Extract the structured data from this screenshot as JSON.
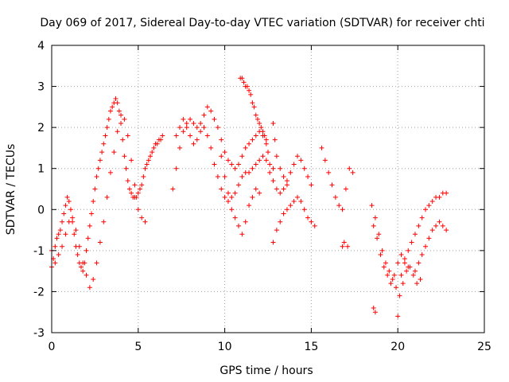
{
  "chart_data": {
    "type": "scatter",
    "title": "Day 069 of 2017, Sidereal Day-to-day VTEC variation (SDTVAR) for receiver chti",
    "xlabel": "GPS time / hours",
    "ylabel": "SDTVAR / TECUs",
    "xlim": [
      0,
      25
    ],
    "ylim": [
      -3,
      4
    ],
    "xticks": [
      "0",
      "5",
      "10",
      "15",
      "20",
      "25"
    ],
    "yticks": [
      "-3",
      "-2",
      "-1",
      "0",
      "1",
      "2",
      "3",
      "4"
    ],
    "grid": true,
    "legend": "none",
    "marker": "plus",
    "color": "#ff0000",
    "series": [
      {
        "x": [
          0.0,
          0.1,
          0.2,
          0.3,
          0.4,
          0.5,
          0.6,
          0.7,
          0.8,
          0.9,
          1.0,
          1.1,
          1.2,
          1.3,
          1.4,
          1.5,
          1.6,
          1.7,
          1.8,
          1.9,
          2.0,
          2.1,
          2.2,
          2.3,
          2.4,
          2.5,
          2.6,
          2.7,
          2.8,
          2.9,
          3.0,
          3.1,
          3.2,
          3.3,
          3.4,
          3.5,
          3.6,
          3.7,
          3.8,
          3.9,
          4.0,
          4.1,
          4.2,
          4.3,
          4.4,
          4.5,
          4.6,
          4.7,
          4.8,
          4.9,
          5.0,
          5.1,
          5.2,
          5.3,
          5.4,
          5.5,
          5.6,
          5.7,
          5.8,
          5.9,
          6.0,
          6.1,
          6.2,
          6.3,
          6.4
        ],
        "y": [
          -1.0,
          -1.2,
          -0.9,
          -0.7,
          -0.6,
          -0.5,
          -0.3,
          -0.1,
          0.1,
          0.3,
          0.2,
          0.0,
          -0.3,
          -0.6,
          -0.9,
          -1.1,
          -1.3,
          -1.4,
          -1.5,
          -1.3,
          -1.0,
          -0.7,
          -0.4,
          -0.1,
          0.2,
          0.5,
          0.8,
          1.0,
          1.2,
          1.4,
          1.6,
          1.8,
          2.0,
          2.2,
          2.4,
          2.5,
          2.6,
          2.7,
          2.6,
          2.4,
          2.1,
          1.7,
          1.3,
          1.0,
          0.7,
          0.5,
          0.4,
          0.3,
          0.3,
          0.3,
          0.4,
          0.5,
          0.6,
          0.8,
          1.0,
          1.1,
          1.2,
          1.3,
          1.4,
          1.5,
          1.6,
          1.6,
          1.7,
          1.7,
          1.8
        ]
      },
      {
        "x": [
          0.0,
          0.2,
          0.4,
          0.6,
          0.8,
          1.0,
          1.2,
          1.4,
          1.6,
          1.8,
          2.0,
          2.2,
          2.4,
          2.6,
          2.8,
          3.0,
          3.2,
          3.4,
          3.6,
          3.8,
          4.0,
          4.2,
          4.4,
          4.6,
          4.8,
          5.0,
          5.2,
          5.4
        ],
        "y": [
          -1.4,
          -1.3,
          -1.1,
          -0.9,
          -0.6,
          -0.3,
          -0.2,
          -0.5,
          -0.9,
          -1.3,
          -1.6,
          -1.9,
          -1.7,
          -1.3,
          -0.8,
          -0.3,
          0.3,
          0.9,
          1.4,
          1.9,
          2.3,
          2.2,
          1.8,
          1.2,
          0.6,
          0.0,
          -0.2,
          -0.3
        ]
      },
      {
        "x": [
          7.0,
          7.2,
          7.4,
          7.6,
          7.8,
          8.0,
          8.2,
          8.4,
          8.6,
          8.8,
          9.0,
          9.2,
          9.4,
          9.6,
          9.8,
          10.0,
          10.2,
          10.4,
          10.6,
          10.8,
          11.0,
          11.2,
          11.4,
          11.6,
          11.8,
          12.0,
          12.2,
          12.4
        ],
        "y": [
          0.5,
          1.0,
          1.5,
          1.9,
          2.1,
          2.2,
          2.1,
          2.0,
          2.1,
          2.3,
          2.5,
          2.4,
          2.2,
          2.0,
          1.7,
          1.4,
          1.2,
          1.1,
          1.0,
          1.1,
          1.3,
          1.5,
          1.6,
          1.7,
          1.8,
          1.9,
          1.8,
          1.7
        ]
      },
      {
        "x": [
          7.2,
          7.4,
          7.6,
          7.8,
          8.0,
          8.2,
          8.4,
          8.6,
          8.8,
          9.0,
          9.2,
          9.4,
          9.6,
          9.8,
          10.0,
          10.2,
          10.4,
          10.6,
          10.8,
          11.0,
          11.2,
          11.4,
          11.6,
          11.8,
          12.0,
          12.2,
          12.4,
          12.6,
          12.8
        ],
        "y": [
          1.8,
          2.0,
          2.2,
          2.0,
          1.8,
          1.6,
          1.7,
          1.9,
          2.0,
          1.8,
          1.5,
          1.1,
          0.8,
          0.5,
          0.3,
          0.2,
          0.3,
          0.4,
          0.6,
          0.8,
          0.9,
          0.9,
          1.0,
          1.1,
          1.2,
          1.3,
          1.2,
          1.1,
          1.0
        ]
      },
      {
        "x": [
          9.8,
          10.0,
          10.2,
          10.4,
          10.6,
          10.8,
          11.0,
          11.2,
          11.4,
          11.6,
          11.8,
          12.0
        ],
        "y": [
          1.3,
          0.8,
          0.4,
          0.0,
          -0.2,
          -0.4,
          -0.6,
          -0.3,
          0.1,
          0.3,
          0.5,
          0.4
        ]
      },
      {
        "x": [
          10.9,
          11.0,
          11.1,
          11.2,
          11.3,
          11.4,
          11.5,
          11.6,
          11.7,
          11.8,
          11.9,
          12.0,
          12.1,
          12.2,
          12.3,
          12.4,
          12.5
        ],
        "y": [
          3.2,
          3.2,
          3.1,
          3.0,
          3.0,
          2.9,
          2.8,
          2.6,
          2.5,
          2.3,
          2.2,
          2.1,
          2.0,
          1.9,
          1.8,
          1.6,
          1.4
        ]
      },
      {
        "x": [
          12.6,
          12.8,
          13.0,
          13.2,
          13.4,
          13.6,
          13.8,
          14.0,
          14.2,
          14.4,
          14.6,
          14.8,
          15.0
        ],
        "y": [
          0.9,
          0.7,
          0.5,
          0.4,
          0.5,
          0.7,
          0.9,
          1.1,
          1.3,
          1.2,
          1.0,
          0.8,
          0.6
        ]
      },
      {
        "x": [
          12.8,
          13.0,
          13.2,
          13.4,
          13.6,
          13.8,
          14.0,
          14.2,
          14.4,
          14.6,
          14.8,
          15.0,
          15.2
        ],
        "y": [
          -0.8,
          -0.5,
          -0.3,
          -0.1,
          0.0,
          0.1,
          0.2,
          0.3,
          0.2,
          0.0,
          -0.2,
          -0.3,
          -0.4
        ]
      },
      {
        "x": [
          12.8,
          12.9,
          13.0,
          13.2,
          13.4,
          13.6
        ],
        "y": [
          2.1,
          1.7,
          1.3,
          1.0,
          0.8,
          0.6
        ]
      },
      {
        "x": [
          15.6,
          15.8,
          16.0,
          16.2,
          16.4,
          16.6,
          16.8,
          17.0,
          17.2,
          17.4,
          16.8,
          16.9,
          17.1
        ],
        "y": [
          1.5,
          1.2,
          0.9,
          0.6,
          0.3,
          0.1,
          0.0,
          0.5,
          1.0,
          0.9,
          -0.9,
          -0.8,
          -0.9
        ]
      },
      {
        "x": [
          18.5,
          18.7,
          18.9,
          19.1,
          19.3,
          19.5,
          19.7,
          19.9,
          20.1,
          20.3,
          20.5,
          20.7,
          20.9,
          21.1,
          21.3
        ],
        "y": [
          0.1,
          -0.2,
          -0.6,
          -1.0,
          -1.3,
          -1.5,
          -1.7,
          -1.9,
          -2.1,
          -1.8,
          -1.5,
          -1.4,
          -1.6,
          -1.8,
          -1.7
        ]
      },
      {
        "x": [
          18.6,
          18.8,
          19.0,
          19.2,
          19.4,
          19.6,
          19.8,
          20.0,
          20.2,
          20.4,
          20.6,
          18.6,
          18.7,
          20.0
        ],
        "y": [
          -0.4,
          -0.7,
          -1.1,
          -1.4,
          -1.6,
          -1.8,
          -1.6,
          -1.3,
          -1.1,
          -1.2,
          -1.4,
          -2.4,
          -2.5,
          -2.6
        ]
      },
      {
        "x": [
          20.2,
          20.4,
          20.6,
          20.8,
          21.0,
          21.2,
          21.4,
          21.6,
          21.8,
          22.0,
          22.2,
          22.4,
          22.6,
          22.8
        ],
        "y": [
          -1.6,
          -1.3,
          -1.0,
          -0.8,
          -0.6,
          -0.4,
          -0.2,
          0.0,
          0.1,
          0.2,
          0.3,
          0.3,
          0.4,
          0.4
        ]
      },
      {
        "x": [
          21.0,
          21.2,
          21.4,
          21.6,
          21.8,
          22.0,
          22.2,
          22.4,
          22.6,
          22.8
        ],
        "y": [
          -1.5,
          -1.3,
          -1.1,
          -0.9,
          -0.7,
          -0.5,
          -0.4,
          -0.3,
          -0.4,
          -0.5
        ]
      }
    ]
  }
}
